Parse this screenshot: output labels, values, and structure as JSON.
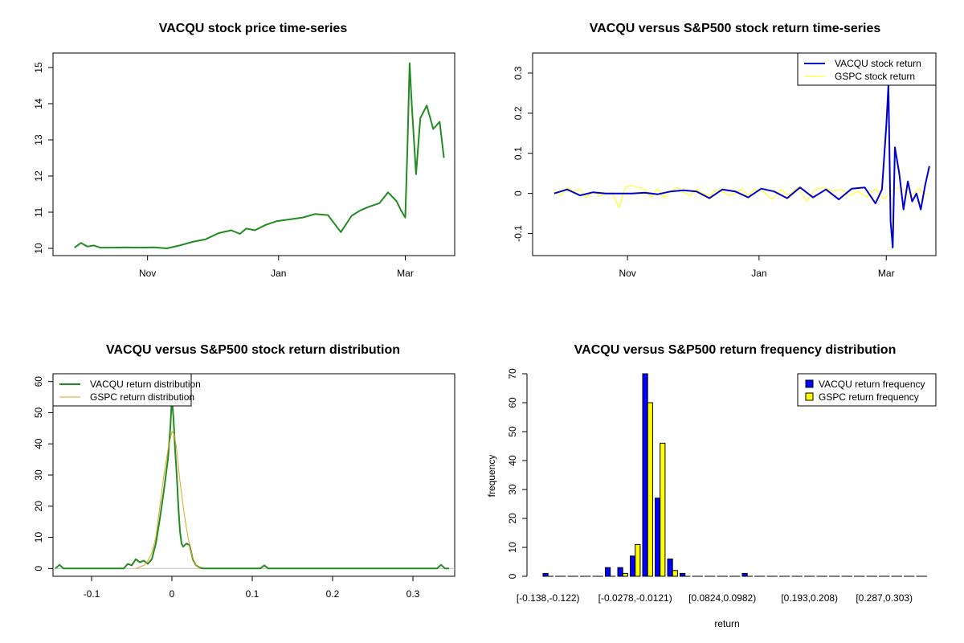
{
  "chart_data": [
    {
      "type": "line",
      "title": "VACQU stock price time-series",
      "xlabel": "",
      "ylabel": "",
      "x_ticks": [
        "Nov",
        "Jan",
        "Mar"
      ],
      "y_ticks": [
        10,
        11,
        12,
        13,
        14,
        15
      ],
      "xlim": [
        "2020-09-18",
        "2021-03-24"
      ],
      "ylim": [
        9.8,
        15.4
      ],
      "legend": "none",
      "colors": {
        "series": "#228B22"
      },
      "series": [
        {
          "x": [
            "2020-09-28",
            "2020-10-01",
            "2020-10-04",
            "2020-10-07",
            "2020-10-10",
            "2020-10-16",
            "2020-10-22",
            "2020-10-28",
            "2020-11-04",
            "2020-11-10",
            "2020-11-16",
            "2020-11-22",
            "2020-11-28",
            "2020-12-04",
            "2020-12-10",
            "2020-12-14",
            "2020-12-17",
            "2020-12-21",
            "2020-12-26",
            "2020-12-31",
            "2021-01-06",
            "2021-01-12",
            "2021-01-18",
            "2021-01-24",
            "2021-01-30",
            "2021-02-04",
            "2021-02-08",
            "2021-02-12",
            "2021-02-17",
            "2021-02-21",
            "2021-02-25",
            "2021-02-27",
            "2021-03-01",
            "2021-03-02",
            "2021-03-03",
            "2021-03-04",
            "2021-03-06",
            "2021-03-08",
            "2021-03-11",
            "2021-03-14",
            "2021-03-17",
            "2021-03-19"
          ],
          "values": [
            10.02,
            10.15,
            10.05,
            10.08,
            10.02,
            10.02,
            10.03,
            10.02,
            10.03,
            10.0,
            10.08,
            10.18,
            10.25,
            10.42,
            10.5,
            10.4,
            10.55,
            10.5,
            10.65,
            10.75,
            10.8,
            10.85,
            10.95,
            10.92,
            10.45,
            10.9,
            11.05,
            11.15,
            11.25,
            11.55,
            11.3,
            11.05,
            10.85,
            12.8,
            15.12,
            14.0,
            12.05,
            13.6,
            13.95,
            13.3,
            13.5,
            12.5
          ]
        }
      ]
    },
    {
      "type": "line",
      "title": "VACQU versus S&P500 stock return time-series",
      "xlabel": "",
      "ylabel": "",
      "x_ticks": [
        "Nov",
        "Jan",
        "Mar"
      ],
      "y_ticks": [
        -0.1,
        0.0,
        0.1,
        0.2,
        0.3
      ],
      "xlim": [
        "2020-09-18",
        "2021-03-24"
      ],
      "ylim": [
        -0.155,
        0.35
      ],
      "legend": "top-right",
      "colors": {
        "VACQU stock return": "#0000CD",
        "GSPC stock return": "#FFFF00"
      },
      "series": [
        {
          "name": "VACQU stock return",
          "x": [
            "2020-09-28",
            "2020-10-04",
            "2020-10-10",
            "2020-10-16",
            "2020-10-22",
            "2020-10-28",
            "2020-11-03",
            "2020-11-09",
            "2020-11-15",
            "2020-11-21",
            "2020-11-27",
            "2020-12-03",
            "2020-12-09",
            "2020-12-15",
            "2020-12-21",
            "2020-12-27",
            "2021-01-02",
            "2021-01-08",
            "2021-01-14",
            "2021-01-20",
            "2021-01-26",
            "2021-02-01",
            "2021-02-07",
            "2021-02-13",
            "2021-02-19",
            "2021-02-24",
            "2021-02-27",
            "2021-03-01",
            "2021-03-02",
            "2021-03-03",
            "2021-03-04",
            "2021-03-05",
            "2021-03-07",
            "2021-03-09",
            "2021-03-11",
            "2021-03-13",
            "2021-03-15",
            "2021-03-17",
            "2021-03-19",
            "2021-03-21"
          ],
          "values": [
            0.0,
            0.01,
            -0.005,
            0.003,
            0.0,
            0.0,
            0.0,
            0.002,
            -0.002,
            0.005,
            0.008,
            0.005,
            -0.012,
            0.01,
            0.005,
            -0.01,
            0.012,
            0.005,
            -0.012,
            0.015,
            -0.01,
            0.01,
            -0.015,
            0.012,
            0.015,
            -0.025,
            0.01,
            0.17,
            0.27,
            -0.07,
            -0.135,
            0.115,
            0.05,
            -0.04,
            0.03,
            -0.02,
            0.0,
            -0.04,
            0.02,
            0.068
          ]
        },
        {
          "name": "GSPC stock return",
          "x": [
            "2020-09-28",
            "2020-10-01",
            "2020-10-04",
            "2020-10-07",
            "2020-10-10",
            "2020-10-13",
            "2020-10-16",
            "2020-10-19",
            "2020-10-22",
            "2020-10-25",
            "2020-10-28",
            "2020-10-31",
            "2020-11-03",
            "2020-11-06",
            "2020-11-09",
            "2020-11-12",
            "2020-11-15",
            "2020-11-18",
            "2020-11-21",
            "2020-11-24",
            "2020-11-27",
            "2020-11-30",
            "2020-12-03",
            "2020-12-06",
            "2020-12-09",
            "2020-12-12",
            "2020-12-15",
            "2020-12-18",
            "2020-12-21",
            "2020-12-24",
            "2020-12-27",
            "2020-12-30",
            "2021-01-03",
            "2021-01-07",
            "2021-01-11",
            "2021-01-15",
            "2021-01-19",
            "2021-01-23",
            "2021-01-27",
            "2021-01-31",
            "2021-02-04",
            "2021-02-08",
            "2021-02-12",
            "2021-02-16",
            "2021-02-20",
            "2021-02-24",
            "2021-02-28",
            "2021-03-04",
            "2021-03-08",
            "2021-03-12",
            "2021-03-16",
            "2021-03-20"
          ],
          "values": [
            0.01,
            -0.005,
            0.015,
            0.005,
            0.01,
            -0.01,
            0.005,
            -0.005,
            0.0,
            0.002,
            -0.035,
            0.015,
            0.02,
            0.015,
            0.01,
            -0.01,
            0.012,
            -0.01,
            0.005,
            0.015,
            0.003,
            -0.005,
            0.01,
            0.0,
            -0.008,
            0.01,
            0.005,
            -0.005,
            0.0,
            0.012,
            -0.005,
            0.01,
            0.005,
            -0.015,
            0.01,
            -0.005,
            0.015,
            -0.02,
            0.01,
            0.015,
            0.005,
            0.01,
            -0.005,
            0.005,
            -0.01,
            0.012,
            -0.015,
            0.01,
            0.015,
            -0.01,
            0.012,
            -0.005
          ]
        }
      ]
    },
    {
      "type": "line",
      "title": "VACQU versus S&P500 stock return distribution",
      "xlabel": "",
      "ylabel": "",
      "x_ticks": [
        -0.1,
        0.0,
        0.1,
        0.2,
        0.3
      ],
      "y_ticks": [
        0,
        10,
        20,
        30,
        40,
        50,
        60
      ],
      "xlim": [
        -0.148,
        0.352
      ],
      "ylim": [
        -2.5,
        62.5
      ],
      "legend": "top-left",
      "colors": {
        "VACQU return distribution": "#228B22",
        "GSPC return distribution": "#DAA520",
        "baseline": "#BEBEBE"
      },
      "series": [
        {
          "name": "VACQU return distribution",
          "x": [
            -0.145,
            -0.14,
            -0.135,
            -0.13,
            -0.06,
            -0.055,
            -0.05,
            -0.045,
            -0.04,
            -0.035,
            -0.03,
            -0.025,
            -0.02,
            -0.015,
            -0.01,
            -0.005,
            -0.002,
            0.0,
            0.002,
            0.004,
            0.006,
            0.008,
            0.01,
            0.012,
            0.014,
            0.018,
            0.022,
            0.026,
            0.03,
            0.035,
            0.04,
            0.045,
            0.11,
            0.115,
            0.12,
            0.33,
            0.335,
            0.34,
            0.345
          ],
          "values": [
            0,
            1.2,
            0,
            0,
            0,
            1.5,
            1.0,
            3.0,
            2.0,
            2.5,
            1.5,
            3.0,
            8.0,
            16.0,
            25.0,
            35.0,
            45.0,
            55.0,
            48.0,
            38.0,
            30.0,
            20.0,
            12.0,
            8.0,
            7.0,
            8.0,
            7.5,
            3.0,
            1.0,
            0.2,
            0,
            0,
            0,
            1.0,
            0,
            0,
            1.2,
            0,
            0
          ]
        },
        {
          "name": "GSPC return distribution",
          "x": [
            -0.045,
            -0.04,
            -0.035,
            -0.03,
            -0.025,
            -0.02,
            -0.015,
            -0.01,
            -0.005,
            0.0,
            0.003,
            0.006,
            0.01,
            0.015,
            0.02,
            0.025,
            0.03,
            0.035
          ],
          "values": [
            0,
            0.5,
            1.0,
            2.5,
            5.0,
            10.0,
            20.0,
            30.0,
            38.0,
            44.0,
            43.0,
            38.0,
            28.0,
            18.0,
            10.0,
            4.0,
            1.0,
            0
          ]
        }
      ]
    },
    {
      "type": "bar",
      "title": "VACQU versus S&P500 return frequency distribution",
      "xlabel": "return",
      "ylabel": "frequency",
      "tick_labels": [
        "[-0.138,-0.122)",
        "[-0.0278,-0.0121)",
        "[0.0824,0.0982)",
        "[0.193,0.208)",
        "[0.287,0.303)"
      ],
      "tick_positions": [
        0,
        7,
        14,
        21,
        27
      ],
      "n_categories": 31,
      "y_ticks": [
        0,
        10,
        20,
        30,
        40,
        50,
        60,
        70
      ],
      "ylim": [
        0,
        70
      ],
      "legend": "top-right",
      "colors": {
        "VACQU return frequency": "#0000FF",
        "GSPC return frequency": "#FFFF00"
      },
      "series": [
        {
          "name": "VACQU return frequency",
          "values": [
            1,
            0,
            0,
            0,
            0,
            3,
            3,
            7,
            70,
            27,
            6,
            1,
            0,
            0,
            0,
            0,
            1,
            0,
            0,
            0,
            0,
            0,
            0,
            0,
            0,
            0,
            0,
            0,
            0,
            0,
            0
          ]
        },
        {
          "name": "GSPC return frequency",
          "values": [
            0,
            0,
            0,
            0,
            0,
            0,
            1,
            11,
            60,
            46,
            2,
            0,
            0,
            0,
            0,
            0,
            0,
            0,
            0,
            0,
            0,
            0,
            0,
            0,
            0,
            0,
            0,
            0,
            0,
            0,
            0
          ]
        }
      ]
    }
  ]
}
